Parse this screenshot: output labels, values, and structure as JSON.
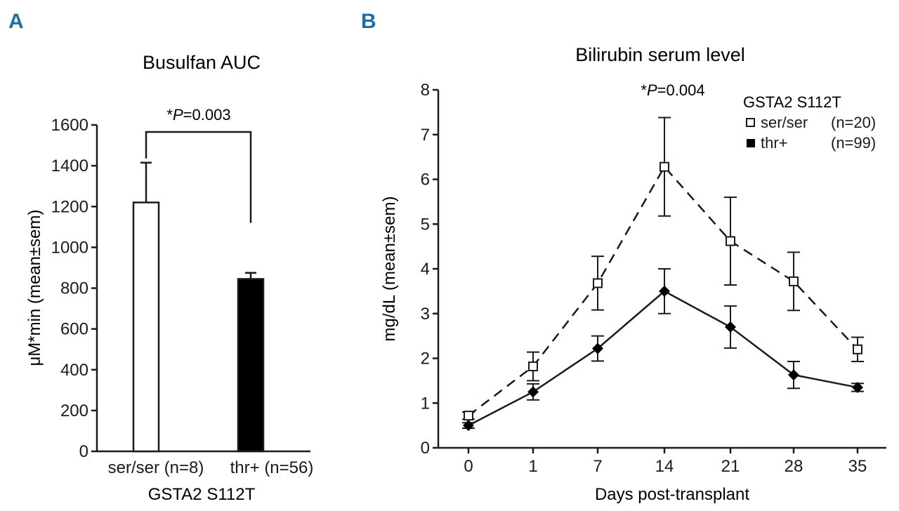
{
  "panels": {
    "a_label": "A",
    "b_label": "B"
  },
  "colors": {
    "ink": "#1a1a1a",
    "panel_label": "#1e6e9e",
    "filled": "#000000",
    "open": "#ffffff"
  },
  "chart_data": [
    {
      "id": "A",
      "type": "bar",
      "title": "Busulfan AUC",
      "xlabel": "GSTA2 S112T",
      "ylabel": "μM*min (mean±sem)",
      "ylim": [
        0,
        1600
      ],
      "yticks": [
        0,
        200,
        400,
        600,
        800,
        1000,
        1200,
        1400,
        1600
      ],
      "categories": [
        "ser/ser (n=8)",
        "thr+ (n=56)"
      ],
      "values": [
        1220,
        845
      ],
      "errors": [
        195,
        30
      ],
      "bar_fills": [
        "open",
        "filled"
      ],
      "annotation": {
        "prefix": "*",
        "p_symbol": "P",
        "p_value": "=0.003"
      }
    },
    {
      "id": "B",
      "type": "line",
      "title": "Bilirubin serum level",
      "xlabel": "Days post-transplant",
      "ylabel": "mg/dL (mean±sem)",
      "ylim": [
        0,
        8
      ],
      "yticks": [
        0,
        1,
        2,
        3,
        4,
        5,
        6,
        7,
        8
      ],
      "categories": [
        "0",
        "1",
        "7",
        "14",
        "21",
        "28",
        "35"
      ],
      "legend_title": "GSTA2 S112T",
      "annotation": {
        "prefix": "*",
        "p_symbol": "P",
        "p_value": "=0.004"
      },
      "series": [
        {
          "name": "ser/ser",
          "n": "(n=20)",
          "marker": "open-square",
          "line": "dashed",
          "values": [
            0.72,
            1.82,
            3.68,
            6.28,
            4.62,
            3.72,
            2.2
          ],
          "errors": [
            0.08,
            0.32,
            0.6,
            1.1,
            0.98,
            0.65,
            0.27
          ]
        },
        {
          "name": "thr+",
          "n": "(n=99)",
          "marker": "filled-diamond",
          "line": "solid",
          "values": [
            0.5,
            1.25,
            2.22,
            3.5,
            2.7,
            1.63,
            1.35
          ],
          "errors": [
            0.06,
            0.18,
            0.28,
            0.5,
            0.47,
            0.3,
            0.09
          ]
        }
      ]
    }
  ]
}
